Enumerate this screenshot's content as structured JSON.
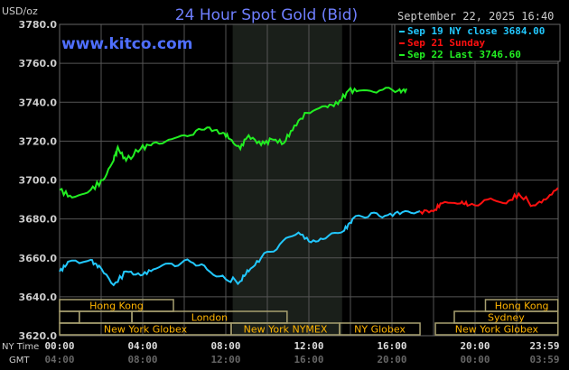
{
  "chart_data": {
    "type": "line",
    "title": "24 Hour Spot Gold (Bid)",
    "watermark": "www.kitco.com",
    "ylabel": "USD/oz",
    "timestamp": "September 22, 2025 16:40",
    "ylim": [
      3620,
      3780
    ],
    "yticks": [
      "3780.0",
      "3760.0",
      "3740.0",
      "3720.0",
      "3700.0",
      "3680.0",
      "3660.0",
      "3640.0",
      "3620.0"
    ],
    "grid": true,
    "legend_position": "top-right",
    "x_row_labels": {
      "ny": "NY Time",
      "gmt": "GMT"
    },
    "xticks_ny": [
      "00:00",
      "04:00",
      "08:00",
      "12:00",
      "16:00",
      "20:00",
      "23:59"
    ],
    "xticks_gmt": [
      "04:00",
      "08:00",
      "12:00",
      "16:00",
      "20:00",
      "00:00",
      "03:59"
    ],
    "shaded_hours": [
      8.33,
      13.6
    ],
    "sessions": [
      {
        "label": "Hong Kong",
        "row": 0,
        "start": 0,
        "end": 5.48
      },
      {
        "label": "Hong Kong",
        "row": 0,
        "start": 20.5,
        "end": 23.99
      },
      {
        "label": "",
        "row": 1,
        "start": 0,
        "end": 0.95
      },
      {
        "label": "",
        "row": 1,
        "start": 0.95,
        "end": 3.48
      },
      {
        "label": "London",
        "row": 1,
        "start": 3.48,
        "end": 10.95
      },
      {
        "label": "Sydney",
        "row": 1,
        "start": 19,
        "end": 23.99
      },
      {
        "label": "New York Globex",
        "row": 2,
        "start": 0,
        "end": 8.26
      },
      {
        "label": "New York NYMEX",
        "row": 2,
        "start": 8.26,
        "end": 13.48
      },
      {
        "label": "NY Globex",
        "row": 2,
        "start": 13.48,
        "end": 17.35
      },
      {
        "label": "New York Globex",
        "row": 2,
        "start": 18.09,
        "end": 23.99
      }
    ],
    "series": [
      {
        "name": "Sep 19 NY close 3684.00",
        "color": "#22c8ff",
        "x": [
          0,
          0.4,
          1.5,
          1.9,
          2.6,
          3.2,
          3.9,
          4.5,
          5.4,
          6.3,
          7.1,
          8.0,
          8.7,
          9.1,
          9.7,
          10.6,
          11.5,
          12.1,
          12.8,
          13.7,
          14.1,
          15.0,
          15.8,
          16.5,
          17.35
        ],
        "y": [
          3653,
          3658,
          3659,
          3656,
          3646,
          3653,
          3651,
          3654,
          3657,
          3658,
          3654,
          3649,
          3648,
          3653,
          3660,
          3667,
          3673,
          3668,
          3670,
          3674,
          3680,
          3683,
          3682,
          3683.5,
          3684
        ]
      },
      {
        "name": "Sep 21 Sunday",
        "color": "#ff1010",
        "x": [
          17.35,
          18.0,
          18.4,
          19.3,
          19.7,
          20.6,
          21.5,
          22.1,
          22.8,
          23.4,
          23.99
        ],
        "y": [
          3684,
          3684,
          3688,
          3688,
          3687,
          3690,
          3688,
          3693,
          3687,
          3690,
          3696
        ]
      },
      {
        "name": "Sep 22 Last 3746.60",
        "color": "#22ee22",
        "x": [
          0,
          0.6,
          1.5,
          2.1,
          2.6,
          2.8,
          3.2,
          3.9,
          4.5,
          5.4,
          6.3,
          7.1,
          7.8,
          8.2,
          8.7,
          9.1,
          9.7,
          10.2,
          10.8,
          11.3,
          11.9,
          12.8,
          13.4,
          13.9,
          14.5,
          15.4,
          16.3,
          16.7
        ],
        "y": [
          3695,
          3691,
          3695,
          3700,
          3710,
          3717,
          3710,
          3716,
          3719,
          3721,
          3723,
          3727,
          3724,
          3721,
          3716,
          3723,
          3718,
          3721,
          3719,
          3728,
          3734.5,
          3738,
          3739,
          3746,
          3746,
          3746,
          3746,
          3747
        ]
      }
    ]
  }
}
